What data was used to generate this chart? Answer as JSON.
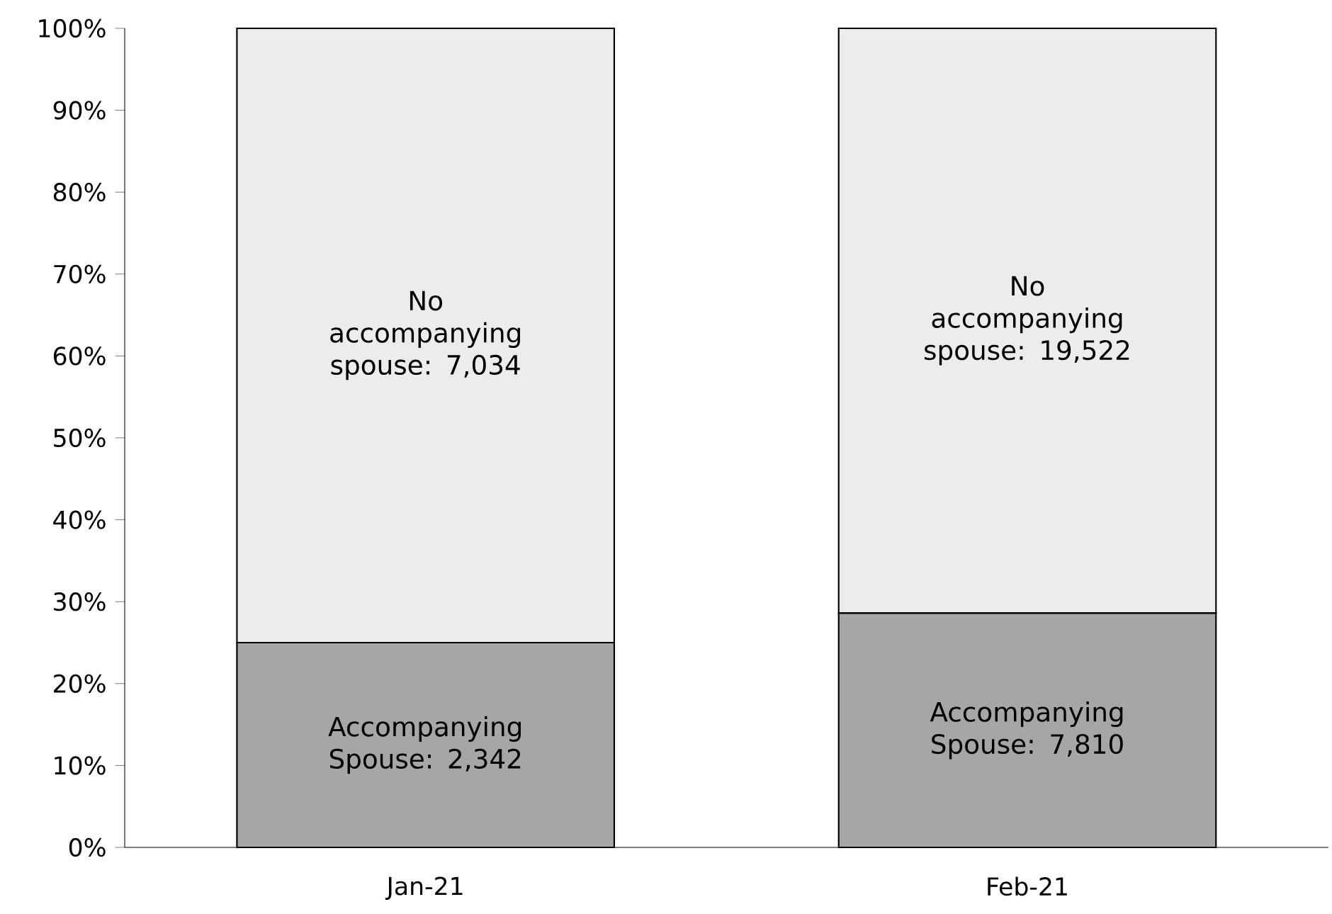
{
  "chart_data": {
    "type": "bar",
    "stacked": true,
    "categories": [
      "Jan-21",
      "Feb-21"
    ],
    "series": [
      {
        "color": "#a6a6a6",
        "values": [
          25.0,
          28.6
        ]
      },
      {
        "color": "#ececec",
        "values": [
          75.0,
          71.4
        ]
      }
    ],
    "annotations": [
      "Accompanying Spouse: 2,342",
      "Accompanying Spouse: 7,810",
      "No accompanying spouse: 7,034",
      "No accompanying spouse: 19,522"
    ],
    "ylim": [
      0,
      100
    ],
    "yticks": [
      {
        "value": 0,
        "label": "0%"
      },
      {
        "value": 10,
        "label": "10%"
      },
      {
        "value": 20,
        "label": "20%"
      },
      {
        "value": 30,
        "label": "30%"
      },
      {
        "value": 40,
        "label": "40%"
      },
      {
        "value": 50,
        "label": "50%"
      },
      {
        "value": 60,
        "label": "60%"
      },
      {
        "value": 70,
        "label": "70%"
      },
      {
        "value": 80,
        "label": "80%"
      },
      {
        "value": 90,
        "label": "90%"
      },
      {
        "value": 100,
        "label": "100%"
      }
    ]
  }
}
